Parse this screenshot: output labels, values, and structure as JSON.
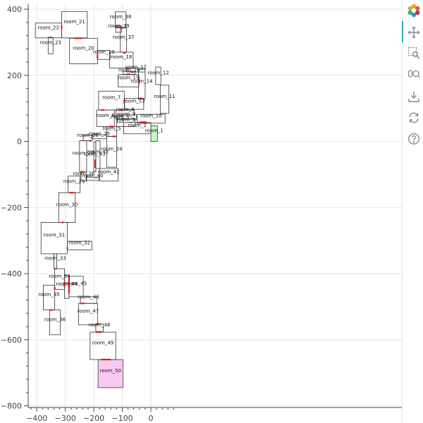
{
  "chart_data": {
    "type": "floorplan",
    "title": "",
    "xlabel": "",
    "ylabel": "",
    "xlim": [
      -430,
      880
    ],
    "ylim": [
      -805,
      415
    ],
    "x_ticks": [
      -400,
      -300,
      -200,
      -100,
      0
    ],
    "y_ticks": [
      400,
      200,
      0,
      -200,
      -400,
      -600,
      -800
    ],
    "x_tick_labels": [
      "−400",
      "−300",
      "−200",
      "−100",
      "0"
    ],
    "y_tick_labels": [
      "400",
      "200",
      "0",
      "−200",
      "−400",
      "−600",
      "−800"
    ],
    "grid": true,
    "rooms": [
      {
        "name": "room_1",
        "x0": 0,
        "x1": 23,
        "y0": 0,
        "y1": 47,
        "fill": "#c8f7c8"
      },
      {
        "name": "room_2",
        "x0": -95,
        "x1": 0,
        "y0": 23,
        "y1": 57,
        "fill": "none"
      },
      {
        "name": "room_3",
        "x0": -120,
        "x1": -55,
        "y0": 45,
        "y1": 69,
        "fill": "none"
      },
      {
        "name": "room_4",
        "x0": -117,
        "x1": -98,
        "y0": 58,
        "y1": 75,
        "fill": "none"
      },
      {
        "name": "room_5",
        "x0": -155,
        "x1": -120,
        "y0": 15,
        "y1": 45,
        "fill": "none"
      },
      {
        "name": "room_6",
        "x0": -190,
        "x1": -128,
        "y0": 45,
        "y1": 95,
        "fill": "none"
      },
      {
        "name": "room_7",
        "x0": -183,
        "x1": -93,
        "y0": 95,
        "y1": 152,
        "fill": "none"
      },
      {
        "name": "room_8",
        "x0": -122,
        "x1": -58,
        "y0": 80,
        "y1": 95,
        "fill": "none"
      },
      {
        "name": "room_9",
        "x0": -122,
        "x1": -50,
        "y0": 67,
        "y1": 80,
        "fill": "none"
      },
      {
        "name": "room_10",
        "x0": -48,
        "x1": 50,
        "y0": 55,
        "y1": 82,
        "fill": "none"
      },
      {
        "name": "room_11",
        "x0": 33,
        "x1": 63,
        "y0": 85,
        "y1": 170,
        "fill": "none"
      },
      {
        "name": "room_12",
        "x0": 17,
        "x1": 35,
        "y0": 172,
        "y1": 225,
        "fill": "none"
      },
      {
        "name": "room_13",
        "x0": -92,
        "x1": -25,
        "y0": 97,
        "y1": 130,
        "fill": "none"
      },
      {
        "name": "room_14",
        "x0": -43,
        "x1": -20,
        "y0": 128,
        "y1": 218,
        "fill": "none"
      },
      {
        "name": "room_15",
        "x0": -115,
        "x1": -42,
        "y0": 165,
        "y1": 202,
        "fill": "none"
      },
      {
        "name": "room_16",
        "x0": -97,
        "x1": -55,
        "y0": 203,
        "y1": 212,
        "fill": "none"
      },
      {
        "name": "room_17",
        "x0": -85,
        "x1": -20,
        "y0": 210,
        "y1": 222,
        "fill": "none"
      },
      {
        "name": "room_18",
        "x0": -145,
        "x1": -62,
        "y0": 222,
        "y1": 270,
        "fill": "none"
      },
      {
        "name": "room_19",
        "x0": -187,
        "x1": -143,
        "y0": 248,
        "y1": 275,
        "fill": "none"
      },
      {
        "name": "room_20",
        "x0": -285,
        "x1": -187,
        "y0": 235,
        "y1": 312,
        "fill": "none"
      },
      {
        "name": "room_21",
        "x0": -313,
        "x1": -223,
        "y0": 313,
        "y1": 393,
        "fill": "none"
      },
      {
        "name": "room_22",
        "x0": -405,
        "x1": -313,
        "y0": 313,
        "y1": 358,
        "fill": "none"
      },
      {
        "name": "room_23",
        "x0": -360,
        "x1": -343,
        "y0": 265,
        "y1": 315,
        "fill": "none"
      },
      {
        "name": "room_24",
        "x0": -155,
        "x1": -120,
        "y0": -78,
        "y1": 15,
        "fill": "none"
      },
      {
        "name": "room_25",
        "x0": -207,
        "x1": -155,
        "y0": 8,
        "y1": 20,
        "fill": "none"
      },
      {
        "name": "room_26",
        "x0": -237,
        "x1": -205,
        "y0": 2,
        "y1": 18,
        "fill": "none"
      },
      {
        "name": "room_27",
        "x0": -250,
        "x1": -225,
        "y0": -92,
        "y1": 2,
        "fill": "none"
      },
      {
        "name": "room_28",
        "x0": -245,
        "x1": -225,
        "y0": -120,
        "y1": -92,
        "fill": "none"
      },
      {
        "name": "room_29",
        "x0": -290,
        "x1": -248,
        "y0": -155,
        "y1": -105,
        "fill": "none"
      },
      {
        "name": "room_30",
        "x0": -323,
        "x1": -265,
        "y0": -245,
        "y1": -155,
        "fill": "none"
      },
      {
        "name": "room_31",
        "x0": -385,
        "x1": -293,
        "y0": -340,
        "y1": -245,
        "fill": "none"
      },
      {
        "name": "room_32",
        "x0": -293,
        "x1": -207,
        "y0": -328,
        "y1": -302,
        "fill": "none"
      },
      {
        "name": "room_33",
        "x0": -340,
        "x1": -330,
        "y0": -385,
        "y1": -340,
        "fill": "none"
      },
      {
        "name": "room_34",
        "x0": -337,
        "x1": -303,
        "y0": -448,
        "y1": -385,
        "fill": "none"
      },
      {
        "name": "room_35",
        "x0": -377,
        "x1": -337,
        "y0": -510,
        "y1": -435,
        "fill": "none"
      },
      {
        "name": "room_36",
        "x0": -355,
        "x1": -317,
        "y0": -585,
        "y1": -510,
        "fill": "none"
      },
      {
        "name": "room_37",
        "x0": -107,
        "x1": -85,
        "y0": 270,
        "y1": 343,
        "fill": "none"
      },
      {
        "name": "room_38",
        "x0": -125,
        "x1": -87,
        "y0": 345,
        "y1": 392,
        "fill": "none"
      },
      {
        "name": "room_39",
        "x0": -123,
        "x1": -103,
        "y0": 330,
        "y1": 350,
        "fill": "none"
      },
      {
        "name": "room_40",
        "x0": -227,
        "x1": -182,
        "y0": -118,
        "y1": -108,
        "fill": "none"
      },
      {
        "name": "room_41",
        "x0": -180,
        "x1": -115,
        "y0": -120,
        "y1": -82,
        "fill": "none"
      },
      {
        "name": "room_42",
        "x0": -193,
        "x1": -178,
        "y0": -82,
        "y1": 2,
        "fill": "none"
      },
      {
        "name": "room_43",
        "x0": -200,
        "x1": -193,
        "y0": -92,
        "y1": -2,
        "fill": "none"
      },
      {
        "name": "room_44",
        "x0": -303,
        "x1": -287,
        "y0": -475,
        "y1": -405,
        "fill": "none"
      },
      {
        "name": "room_45",
        "x0": -287,
        "x1": -237,
        "y0": -470,
        "y1": -408,
        "fill": "none"
      },
      {
        "name": "room_46",
        "x0": -247,
        "x1": -190,
        "y0": -490,
        "y1": -470,
        "fill": "none"
      },
      {
        "name": "room_47",
        "x0": -253,
        "x1": -187,
        "y0": -555,
        "y1": -490,
        "fill": "none"
      },
      {
        "name": "room_48",
        "x0": -193,
        "x1": -167,
        "y0": -575,
        "y1": -552,
        "fill": "none"
      },
      {
        "name": "room_49",
        "x0": -213,
        "x1": -123,
        "y0": -660,
        "y1": -577,
        "fill": "none"
      },
      {
        "name": "room_50",
        "x0": -185,
        "x1": -98,
        "y0": -745,
        "y1": -660,
        "fill": "#f9c9f2"
      }
    ],
    "doors": [
      {
        "x0": -40,
        "y0": 58,
        "x1": -15,
        "y1": 58
      },
      {
        "x0": -145,
        "y0": 45,
        "x1": -132,
        "y1": 45
      },
      {
        "x0": -135,
        "y0": 15,
        "x1": -122,
        "y1": 15
      },
      {
        "x0": -175,
        "y0": 95,
        "x1": -163,
        "y1": 95
      },
      {
        "x0": -110,
        "y0": 95,
        "x1": -98,
        "y1": 95
      },
      {
        "x0": -93,
        "y0": 115,
        "x1": -93,
        "y1": 127
      },
      {
        "x0": -42,
        "y0": 130,
        "x1": -28,
        "y1": 130
      },
      {
        "x0": -42,
        "y0": 175,
        "x1": -42,
        "y1": 195
      },
      {
        "x0": -85,
        "y0": 203,
        "x1": -72,
        "y1": 203
      },
      {
        "x0": -97,
        "y0": 268,
        "x1": -88,
        "y1": 268
      },
      {
        "x0": -187,
        "y0": 250,
        "x1": -187,
        "y1": 263
      },
      {
        "x0": -268,
        "y0": 312,
        "x1": -240,
        "y1": 312
      },
      {
        "x0": -313,
        "y0": 340,
        "x1": -313,
        "y1": 350
      },
      {
        "x0": -355,
        "y0": 315,
        "x1": -350,
        "y1": 315
      },
      {
        "x0": -123,
        "y0": 345,
        "x1": -103,
        "y1": 345
      },
      {
        "x0": -217,
        "y0": 2,
        "x1": -210,
        "y1": 2
      },
      {
        "x0": -247,
        "y0": -92,
        "x1": -237,
        "y1": -92
      },
      {
        "x0": -195,
        "y0": -55,
        "x1": -195,
        "y1": -80
      },
      {
        "x0": -285,
        "y0": -155,
        "x1": -268,
        "y1": -155
      },
      {
        "x0": -313,
        "y0": -245,
        "x1": -305,
        "y1": -245
      },
      {
        "x0": -293,
        "y0": -325,
        "x1": -293,
        "y1": -320
      },
      {
        "x0": -336,
        "y0": -385,
        "x1": -330,
        "y1": -385
      },
      {
        "x0": -337,
        "y0": -440,
        "x1": -337,
        "y1": -448
      },
      {
        "x0": -355,
        "y0": -510,
        "x1": -345,
        "y1": -510
      },
      {
        "x0": -303,
        "y0": -425,
        "x1": -303,
        "y1": -440
      },
      {
        "x0": -287,
        "y0": -410,
        "x1": -287,
        "y1": -460
      },
      {
        "x0": -247,
        "y0": -490,
        "x1": -232,
        "y1": -490
      },
      {
        "x0": -190,
        "y0": -552,
        "x1": -180,
        "y1": -552
      },
      {
        "x0": -193,
        "y0": -577,
        "x1": -175,
        "y1": -577
      },
      {
        "x0": -175,
        "y0": -660,
        "x1": -140,
        "y1": -660
      },
      {
        "x0": 33,
        "y0": 82,
        "x1": 36,
        "y1": 82
      },
      {
        "x0": -85,
        "y0": 222,
        "x1": -80,
        "y1": 222
      }
    ],
    "colors": {
      "outline": "#333333",
      "door": "#e31a1c",
      "grid": "#e5e5e5",
      "axis": "#444444"
    }
  },
  "toolbar": {
    "tools": [
      {
        "name": "bokeh-logo",
        "icon": "logo-icon"
      },
      {
        "name": "pan-tool",
        "icon": "pan-icon",
        "active": true
      },
      {
        "name": "box-zoom-tool",
        "icon": "box-zoom-icon"
      },
      {
        "name": "wheel-zoom-tool",
        "icon": "wheel-zoom-icon"
      },
      {
        "name": "save-tool",
        "icon": "save-icon"
      },
      {
        "name": "reset-tool",
        "icon": "reset-icon"
      },
      {
        "name": "help-tool",
        "icon": "help-icon"
      }
    ]
  }
}
